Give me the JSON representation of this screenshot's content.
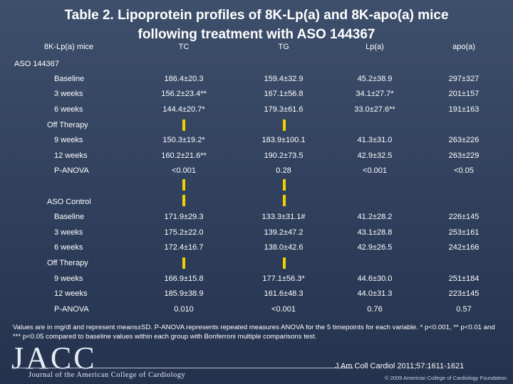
{
  "title_line1": "Table 2. Lipoprotein profiles of 8K-Lp(a) and 8K-apo(a) mice",
  "title_line2": "following treatment with ASO 144367",
  "header": {
    "group": "8K-Lp(a) mice",
    "columns": [
      "TC",
      "TG",
      "Lp(a)",
      "apo(a)"
    ]
  },
  "sections": {
    "aso": "ASO 144367",
    "aso_off": "Off Therapy",
    "control": "ASO Control",
    "control_off": "Off Therapy"
  },
  "rows": [
    {
      "label": "Baseline",
      "values": [
        "186.4±20.3",
        "159.4±32.9",
        "45.2±38.9",
        "297±327"
      ]
    },
    {
      "label": "3 weeks",
      "values": [
        "156.2±23.4**",
        "167.1±56.8",
        "34.1±27.7*",
        "201±157"
      ]
    },
    {
      "label": "6 weeks",
      "values": [
        "144.4±20.7*",
        "179.3±61.6",
        "33.0±27.6**",
        "191±163"
      ]
    },
    {
      "label": "9 weeks",
      "values": [
        "150.3±19.2*",
        "183.9±100.1",
        "41.3±31.0",
        "263±226"
      ]
    },
    {
      "label": "12 weeks",
      "values": [
        "160.2±21.6**",
        "190.2±73.5",
        "42.9±32.5",
        "263±229"
      ]
    },
    {
      "label": "P-ANOVA",
      "values": [
        "<0.001",
        "0.28",
        "<0.001",
        "<0.05"
      ]
    },
    {
      "label": "Baseline",
      "values": [
        "171.9±29.3",
        "133.3±31.1#",
        "41.2±28.2",
        "226±145"
      ]
    },
    {
      "label": "3 weeks",
      "values": [
        "175.2±22.0",
        "139.2±47.2",
        "43.1±28.8",
        "253±161"
      ]
    },
    {
      "label": "6 weeks",
      "values": [
        "172.4±16.7",
        "138.0±42.6",
        "42.9±26.5",
        "242±166"
      ]
    },
    {
      "label": "9 weeks",
      "values": [
        "166.9±15.8",
        "177.1±56.3*",
        "44.6±30.0",
        "251±184"
      ]
    },
    {
      "label": "12 weeks",
      "values": [
        "185.9±38.9",
        "161.6±48.3",
        "44.0±31.3",
        "223±145"
      ]
    },
    {
      "label": "P-ANOVA",
      "values": [
        "0.010",
        "<0.001",
        "0.76",
        "0.57"
      ]
    }
  ],
  "footnote": "Values are in mg/dl and represent means±SD. P-ANOVA represents repeated measures ANOVA for the 5 timepoints for each variable. * p<0.001, ** p<0.01 and *** p<0.05 compared to baseline values within each group with Bonferroni multiple comparisons test.",
  "logo": "JACC",
  "logo_sub": "Journal of the American College of Cardiology",
  "citation": "J Am Coll Cardiol 2011;57:1611-1621",
  "copyright": "© 2009 American College of Cardiology Foundation",
  "marker_color": "#f4d000"
}
